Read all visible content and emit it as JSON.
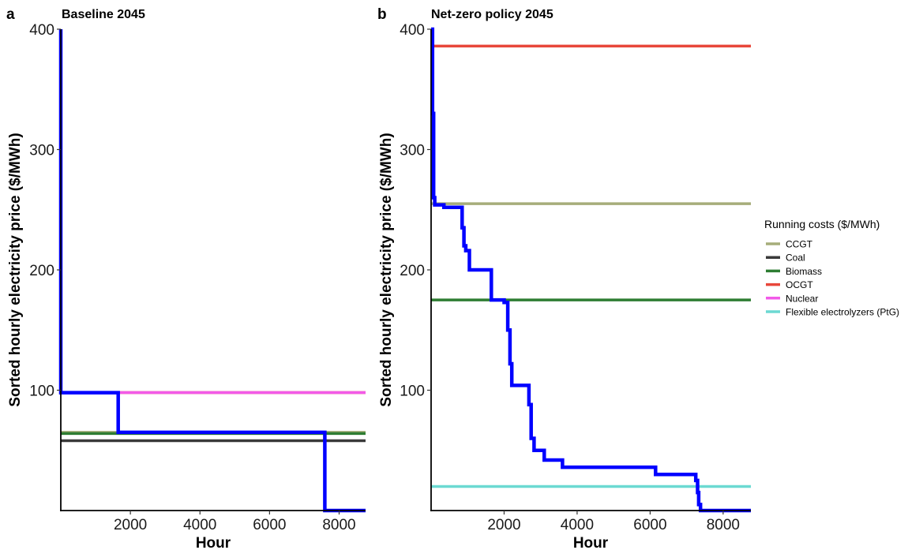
{
  "chart_data": [
    {
      "panel": "a",
      "title": "Baseline 2045",
      "type": "line",
      "xlabel": "Hour",
      "ylabel": "Sorted hourly electricity price ($/MWh)",
      "xlim": [
        0,
        8760
      ],
      "ylim": [
        0,
        400
      ],
      "x_ticks": [
        2000,
        4000,
        6000,
        8000
      ],
      "y_ticks": [
        100,
        200,
        300,
        400
      ],
      "price_curve": {
        "color": "#0000ff",
        "points": [
          [
            0,
            400
          ],
          [
            0,
            98
          ],
          [
            1650,
            98
          ],
          [
            1650,
            65
          ],
          [
            7590,
            65
          ],
          [
            7590,
            0
          ],
          [
            8760,
            0
          ]
        ]
      },
      "running_costs": [
        {
          "name": "CCGT",
          "value": 65
        },
        {
          "name": "Coal",
          "value": 58
        },
        {
          "name": "Biomass",
          "value": 64
        },
        {
          "name": "OCGT",
          "value": 98
        },
        {
          "name": "Nuclear",
          "value": 98
        }
      ]
    },
    {
      "panel": "b",
      "title": "Net-zero policy 2045",
      "type": "line",
      "xlabel": "Hour",
      "ylabel": "Sorted hourly electricity price ($/MWh)",
      "xlim": [
        0,
        8760
      ],
      "ylim": [
        0,
        400
      ],
      "x_ticks": [
        2000,
        4000,
        6000,
        8000
      ],
      "y_ticks": [
        100,
        200,
        300,
        400
      ],
      "price_curve": {
        "color": "#0000ff",
        "points": [
          [
            0,
            400
          ],
          [
            40,
            400
          ],
          [
            40,
            330
          ],
          [
            70,
            330
          ],
          [
            70,
            260
          ],
          [
            100,
            260
          ],
          [
            100,
            254
          ],
          [
            350,
            254
          ],
          [
            350,
            252
          ],
          [
            850,
            252
          ],
          [
            850,
            235
          ],
          [
            900,
            235
          ],
          [
            900,
            220
          ],
          [
            950,
            220
          ],
          [
            950,
            216
          ],
          [
            1050,
            216
          ],
          [
            1050,
            200
          ],
          [
            1650,
            200
          ],
          [
            1650,
            175
          ],
          [
            2000,
            175
          ],
          [
            2000,
            173
          ],
          [
            2100,
            173
          ],
          [
            2100,
            150
          ],
          [
            2160,
            150
          ],
          [
            2160,
            122
          ],
          [
            2210,
            122
          ],
          [
            2210,
            104
          ],
          [
            2680,
            104
          ],
          [
            2680,
            88
          ],
          [
            2740,
            88
          ],
          [
            2740,
            60
          ],
          [
            2820,
            60
          ],
          [
            2820,
            50
          ],
          [
            3100,
            50
          ],
          [
            3100,
            42
          ],
          [
            3600,
            42
          ],
          [
            3600,
            36
          ],
          [
            6150,
            36
          ],
          [
            6150,
            30
          ],
          [
            7250,
            30
          ],
          [
            7250,
            25
          ],
          [
            7300,
            25
          ],
          [
            7300,
            15
          ],
          [
            7330,
            15
          ],
          [
            7330,
            5
          ],
          [
            7380,
            5
          ],
          [
            7380,
            0
          ],
          [
            8760,
            0
          ]
        ]
      },
      "running_costs": [
        {
          "name": "CCGT",
          "value": 255
        },
        {
          "name": "Biomass",
          "value": 175
        },
        {
          "name": "OCGT",
          "value": 386
        },
        {
          "name": "Flexible electrolyzers (PtG)",
          "value": 20
        }
      ]
    }
  ],
  "legend": {
    "title": "Running costs ($/MWh)",
    "placement": "right",
    "items": [
      {
        "name": "CCGT",
        "color": "#a6ad7a"
      },
      {
        "name": "Coal",
        "color": "#3a3a3a"
      },
      {
        "name": "Biomass",
        "color": "#2e7d32"
      },
      {
        "name": "OCGT",
        "color": "#e8473a"
      },
      {
        "name": "Nuclear",
        "color": "#f25ae8"
      },
      {
        "name": "Flexible electrolyzers (PtG)",
        "color": "#6cd9d2"
      }
    ]
  }
}
